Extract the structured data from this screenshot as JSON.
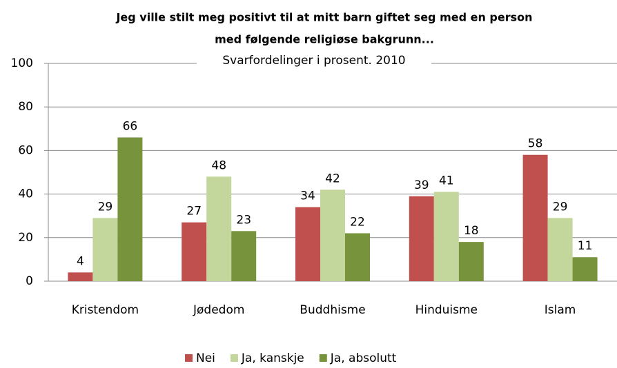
{
  "chart_data": {
    "type": "bar",
    "title": [
      "Jeg ville stilt meg positivt til at mitt barn giftet seg med en person",
      "med følgende religiøse bakgrunn..."
    ],
    "subtitle": "Svarfordelinger i prosent. 2010",
    "categories": [
      "Kristendom",
      "Jødedom",
      "Buddhisme",
      "Hinduisme",
      "Islam"
    ],
    "series": [
      {
        "name": "Nei",
        "color": "#c0504d",
        "values": [
          4,
          27,
          34,
          39,
          58
        ]
      },
      {
        "name": "Ja, kanskje",
        "color": "#c3d69b",
        "values": [
          29,
          48,
          42,
          41,
          29
        ]
      },
      {
        "name": "Ja, absolutt",
        "color": "#77933c",
        "values": [
          66,
          23,
          22,
          18,
          11
        ]
      }
    ],
    "ylim": [
      0,
      100
    ],
    "yticks": [
      0,
      20,
      40,
      60,
      80,
      100
    ],
    "grid": true,
    "legend": "bottom"
  }
}
